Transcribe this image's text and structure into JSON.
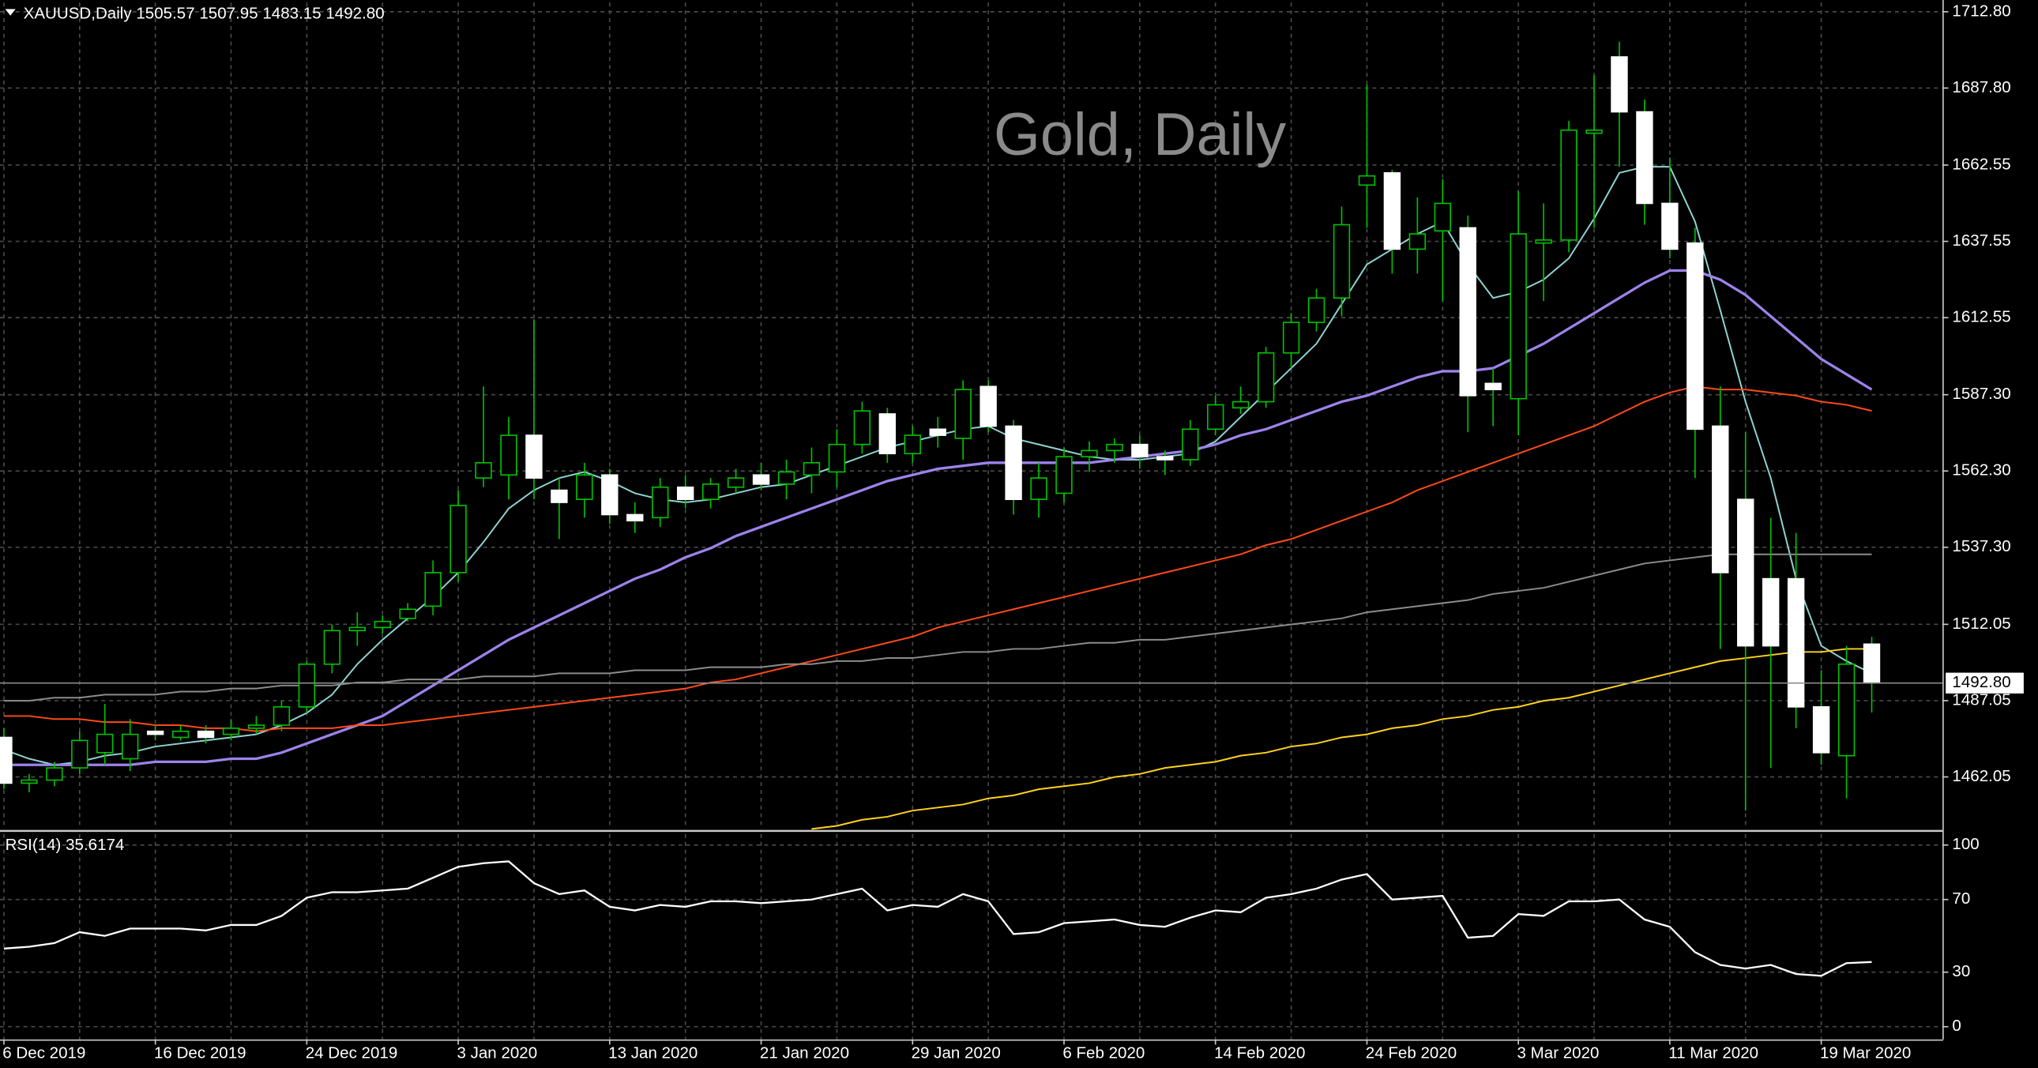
{
  "chart_data": [
    {
      "type": "candlestick",
      "title": "Gold, Daily",
      "header": "XAUUSD,Daily  1505.57 1507.95 1483.15 1492.80",
      "categories": [
        "6 Dec 2019",
        null,
        null,
        null,
        null,
        null,
        "16 Dec 2019",
        null,
        null,
        null,
        null,
        null,
        "24 Dec 2019",
        null,
        null,
        null,
        null,
        null,
        "3 Jan 2020",
        null,
        null,
        null,
        null,
        null,
        "13 Jan 2020",
        null,
        null,
        null,
        null,
        null,
        "21 Jan 2020",
        null,
        null,
        null,
        null,
        null,
        "29 Jan 2020",
        null,
        null,
        null,
        null,
        null,
        "6 Feb 2020",
        null,
        null,
        null,
        null,
        null,
        "14 Feb 2020",
        null,
        null,
        null,
        null,
        null,
        "24 Feb 2020",
        null,
        null,
        null,
        null,
        null,
        "3 Mar 2020",
        null,
        null,
        null,
        null,
        null,
        "11 Mar 2020",
        null,
        null,
        null,
        null,
        null,
        "19 Mar 2020",
        null,
        null
      ],
      "open": [
        1475,
        1460,
        1461,
        1465,
        1470,
        1468,
        1477,
        1475,
        1477,
        1476,
        1478,
        1479,
        1485,
        1499,
        1510,
        1511,
        1514,
        1518,
        1529,
        1560,
        1561,
        1574,
        1556,
        1553,
        1561,
        1548,
        1547,
        1557,
        1553,
        1557,
        1561,
        1558,
        1561,
        1562,
        1571,
        1581,
        1568,
        1576,
        1573,
        1590,
        1577,
        1553,
        1555,
        1567,
        1569,
        1571,
        1567,
        1566,
        1576,
        1583,
        1585,
        1601,
        1611,
        1619,
        1656,
        1660,
        1635,
        1641,
        1642,
        1591,
        1586,
        1637,
        1638,
        1673,
        1698,
        1680,
        1650,
        1637,
        1577,
        1553,
        1527,
        1527,
        1485,
        1469,
        1505.57
      ],
      "high": [
        1478,
        1463,
        1467,
        1477,
        1486,
        1481,
        1479,
        1479,
        1479,
        1481,
        1482,
        1487,
        1500,
        1512,
        1516,
        1515,
        1519,
        1533,
        1556,
        1590,
        1580,
        1612,
        1560,
        1565,
        1563,
        1552,
        1560,
        1561,
        1560,
        1563,
        1565,
        1566,
        1570,
        1576,
        1585,
        1583,
        1577,
        1580,
        1592,
        1592,
        1579,
        1565,
        1570,
        1572,
        1573,
        1574,
        1569,
        1579,
        1587,
        1590,
        1603,
        1614,
        1622,
        1649,
        1689,
        1661,
        1652,
        1658,
        1646,
        1596,
        1654,
        1650,
        1677,
        1692,
        1703,
        1684,
        1665,
        1642,
        1590,
        1575,
        1547,
        1542,
        1497,
        1505,
        1507.95
      ],
      "low": [
        1458,
        1457,
        1459,
        1463,
        1466,
        1464,
        1474,
        1474,
        1473,
        1474,
        1476,
        1477,
        1483,
        1496,
        1505,
        1509,
        1513,
        1515,
        1526,
        1557,
        1553,
        1553,
        1540,
        1547,
        1545,
        1542,
        1544,
        1550,
        1550,
        1555,
        1556,
        1553,
        1555,
        1557,
        1568,
        1565,
        1565,
        1570,
        1566,
        1575,
        1548,
        1547,
        1552,
        1562,
        1565,
        1563,
        1561,
        1564,
        1574,
        1581,
        1583,
        1596,
        1608,
        1613,
        1642,
        1627,
        1627,
        1618,
        1575,
        1577,
        1574,
        1618,
        1634,
        1642,
        1662,
        1643,
        1632,
        1560,
        1504,
        1451,
        1465,
        1478,
        1466,
        1455,
        1483.15
      ],
      "close": [
        1460,
        1461,
        1465,
        1474,
        1476,
        1476,
        1476,
        1477,
        1475,
        1478,
        1479,
        1485,
        1499,
        1510,
        1511,
        1513,
        1517,
        1529,
        1551,
        1565,
        1574,
        1560,
        1552,
        1561,
        1548,
        1546,
        1557,
        1553,
        1558,
        1560,
        1558,
        1562,
        1565,
        1571,
        1582,
        1568,
        1574,
        1574,
        1589,
        1577,
        1553,
        1560,
        1567,
        1569,
        1571,
        1567,
        1566,
        1576,
        1584,
        1585,
        1601,
        1611,
        1619,
        1643,
        1659,
        1635,
        1640,
        1650,
        1587,
        1589,
        1640,
        1638,
        1674,
        1674,
        1680,
        1650,
        1635,
        1576,
        1529,
        1505,
        1505,
        1485,
        1470,
        1499,
        1492.8
      ],
      "bull_color": "#00c000",
      "bear_color": "#ffffff",
      "wick_color": "#00c000",
      "indicators": [
        {
          "color": "#8fd3d3",
          "values": [
            1471,
            1468,
            1466,
            1467,
            1469,
            1470,
            1472,
            1473,
            1474,
            1475,
            1476,
            1479,
            1483,
            1489,
            1499,
            1507,
            1514,
            1521,
            1529,
            1539,
            1550,
            1556,
            1560,
            1562,
            1559,
            1555,
            1553,
            1552,
            1553,
            1555,
            1557,
            1558,
            1561,
            1564,
            1567,
            1570,
            1572,
            1574,
            1576,
            1577,
            1573,
            1571,
            1569,
            1567,
            1566,
            1566,
            1567,
            1568,
            1572,
            1580,
            1588,
            1596,
            1604,
            1617,
            1630,
            1635,
            1640,
            1644,
            1630,
            1619,
            1621,
            1625,
            1632,
            1645,
            1660,
            1662,
            1662,
            1644,
            1615,
            1585,
            1560,
            1527,
            1505,
            1500,
            1496
          ]
        },
        {
          "color": "#9d82ea",
          "values": [
            1466,
            1466,
            1466,
            1466,
            1466,
            1466,
            1467,
            1467,
            1467,
            1468,
            1468,
            1470,
            1473,
            1476,
            1479,
            1482,
            1487,
            1492,
            1497,
            1502,
            1507,
            1511,
            1515,
            1519,
            1523,
            1527,
            1530,
            1534,
            1537,
            1541,
            1544,
            1547,
            1550,
            1553,
            1556,
            1559,
            1561,
            1563,
            1564,
            1565,
            1565,
            1565,
            1565,
            1565,
            1566,
            1567,
            1568,
            1569,
            1571,
            1574,
            1576,
            1579,
            1582,
            1585,
            1587,
            1590,
            1593,
            1595,
            1595,
            1596,
            1600,
            1604,
            1609,
            1614,
            1619,
            1624,
            1628,
            1628,
            1625,
            1620,
            1613,
            1606,
            1599,
            1594,
            1589
          ]
        },
        {
          "color": "#ff4a1a",
          "values": [
            1482,
            1482,
            1481,
            1481,
            1480,
            1480,
            1479,
            1479,
            1478,
            1478,
            1477,
            1478,
            1478,
            1478,
            1479,
            1479,
            1480,
            1481,
            1482,
            1483,
            1484,
            1485,
            1486,
            1487,
            1488,
            1489,
            1490,
            1491,
            1493,
            1494,
            1496,
            1498,
            1500,
            1502,
            1504,
            1506,
            1508,
            1511,
            1513,
            1515,
            1517,
            1519,
            1521,
            1523,
            1525,
            1527,
            1529,
            1531,
            1533,
            1535,
            1538,
            1540,
            1543,
            1546,
            1549,
            1552,
            1556,
            1559,
            1562,
            1565,
            1568,
            1571,
            1574,
            1577,
            1581,
            1585,
            1588,
            1590,
            1589,
            1589,
            1588,
            1587,
            1585,
            1584,
            1582
          ]
        },
        {
          "color": "#8c8c8c",
          "values": [
            1487,
            1487,
            1488,
            1488,
            1489,
            1489,
            1489,
            1490,
            1490,
            1491,
            1491,
            1492,
            1492,
            1492,
            1493,
            1493,
            1494,
            1494,
            1494,
            1495,
            1495,
            1495,
            1496,
            1496,
            1496,
            1497,
            1497,
            1497,
            1498,
            1498,
            1498,
            1499,
            1499,
            1500,
            1500,
            1501,
            1501,
            1502,
            1503,
            1503,
            1504,
            1504,
            1505,
            1506,
            1506,
            1507,
            1507,
            1508,
            1509,
            1510,
            1511,
            1512,
            1513,
            1514,
            1516,
            1517,
            1518,
            1519,
            1520,
            1522,
            1523,
            1524,
            1526,
            1528,
            1530,
            1532,
            1533,
            1534,
            1535,
            1535,
            1535,
            1535,
            1535,
            1535,
            1535
          ]
        },
        {
          "color": "#ffd21f",
          "values": [
            null,
            null,
            null,
            null,
            null,
            null,
            null,
            null,
            null,
            null,
            null,
            null,
            null,
            null,
            null,
            null,
            null,
            null,
            null,
            null,
            null,
            null,
            null,
            null,
            null,
            null,
            null,
            null,
            null,
            null,
            null,
            null,
            1445,
            1446,
            1448,
            1449,
            1451,
            1452,
            1453,
            1455,
            1456,
            1458,
            1459,
            1460,
            1462,
            1463,
            1465,
            1466,
            1467,
            1469,
            1470,
            1472,
            1473,
            1475,
            1476,
            1478,
            1479,
            1481,
            1482,
            1484,
            1485,
            1487,
            1488,
            1490,
            1492,
            1494,
            1496,
            1498,
            1500,
            1501,
            1502,
            1503,
            1503,
            1504,
            1504
          ]
        }
      ],
      "current_price": {
        "value": 1492.8,
        "label": "1492.80"
      },
      "ylim": [
        1445.0,
        1715.8
      ],
      "yticks": [
        {
          "value": 1712.8,
          "label": "1712.80"
        },
        {
          "value": 1687.8,
          "label": "1687.80"
        },
        1662.55,
        1637.55,
        1612.55,
        {
          "value": 1587.3,
          "label": "1587.30"
        },
        {
          "value": 1562.3,
          "label": "1562.30"
        },
        {
          "value": 1537.3,
          "label": "1537.30"
        },
        1512.05,
        1487.05,
        1462.05
      ],
      "grid": true
    },
    {
      "type": "line",
      "title": "RSI(14) 35.6174",
      "color": "#ffffff",
      "values": [
        43,
        44,
        46,
        52,
        50,
        54,
        54,
        54,
        53,
        56,
        56,
        61,
        71,
        74,
        74,
        75,
        76,
        82,
        88,
        90,
        91,
        79,
        73,
        75,
        66,
        64,
        67,
        66,
        69,
        69,
        68,
        69,
        70,
        73,
        76,
        64,
        67,
        66,
        73,
        69,
        51,
        52,
        57,
        58,
        59,
        56,
        55,
        60,
        64,
        63,
        71,
        73,
        76,
        81,
        84,
        70,
        71,
        72,
        49,
        50,
        62,
        61,
        69,
        69,
        70,
        59,
        55,
        41,
        34,
        32,
        34,
        29,
        28,
        35,
        35.6174
      ],
      "ylim": [
        -7,
        106
      ],
      "yticks": [
        100,
        70,
        30,
        0
      ],
      "grid": true
    }
  ]
}
